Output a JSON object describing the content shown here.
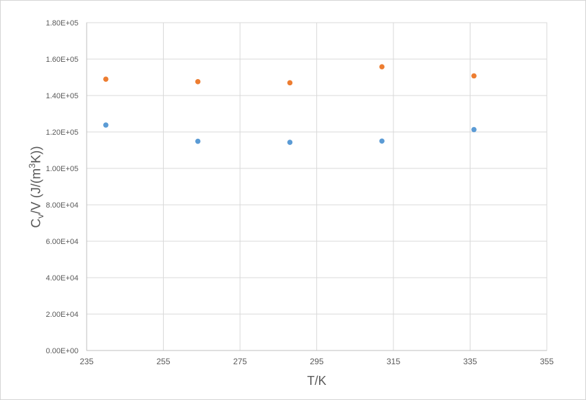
{
  "chart": {
    "background_color": "#FFFFFF",
    "border_color": "#D4D4D4",
    "gridline_color": "#D9D9D9",
    "axis_line_color": "#BFBFBF",
    "text_color": "#595959",
    "x_axis": {
      "title": "T/K",
      "ticks": [
        "235",
        "255",
        "275",
        "295",
        "315",
        "335",
        "355"
      ]
    },
    "y_axis": {
      "title_parts": {
        "base1": "C",
        "sub": "v",
        "base2": "/V (J/(m",
        "sup": "3",
        "base3": "K))"
      },
      "ticks": [
        "0.00E+00",
        "2.00E+04",
        "4.00E+04",
        "6.00E+04",
        "8.00E+04",
        "1.00E+05",
        "1.20E+05",
        "1.40E+05",
        "1.60E+05",
        "1.80E+05"
      ]
    }
  },
  "chart_data": {
    "type": "scatter",
    "title": "",
    "xlabel": "T/K",
    "ylabel": "Cv/V (J/(m^3K))",
    "x": [
      240,
      264,
      288,
      312,
      336
    ],
    "series": [
      {
        "name": "orange-series",
        "color": "#ED7D31",
        "values": [
          149000,
          147600,
          147000,
          155800,
          150800
        ]
      },
      {
        "name": "blue-series",
        "color": "#5B9BD5",
        "values": [
          123800,
          114900,
          114300,
          115000,
          121300
        ]
      }
    ],
    "xlim": [
      235,
      355
    ],
    "ylim": [
      0,
      180000
    ],
    "x_tick_step": 20,
    "y_tick_step": 20000,
    "grid": true,
    "legend": false,
    "marker_radius": 3.8
  }
}
